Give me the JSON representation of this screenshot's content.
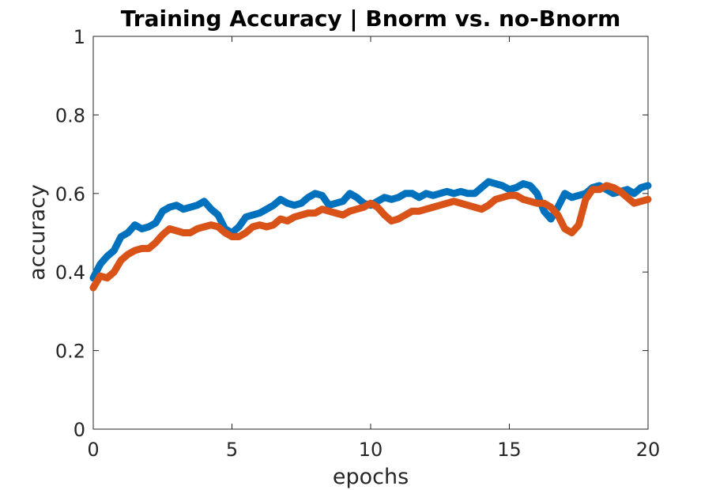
{
  "chart_data": {
    "type": "line",
    "title": "Training Accuracy | Bnorm vs. no-Bnorm",
    "xlabel": "epochs",
    "ylabel": "accuracy",
    "xlim": [
      0,
      20
    ],
    "ylim": [
      0,
      1
    ],
    "xticks": [
      0,
      5,
      10,
      15,
      20
    ],
    "xtick_labels": [
      "0",
      "5",
      "10",
      "15",
      "20"
    ],
    "yticks": [
      0,
      0.2,
      0.4,
      0.6,
      0.8,
      1
    ],
    "ytick_labels": [
      "0",
      "0.2",
      "0.4",
      "0.6",
      "0.8",
      "1"
    ],
    "grid": false,
    "legend": "none",
    "series": [
      {
        "color": "#0072BD",
        "x": [
          0,
          0.25,
          0.5,
          0.75,
          1,
          1.25,
          1.5,
          1.75,
          2,
          2.25,
          2.5,
          2.75,
          3,
          3.25,
          3.5,
          3.75,
          4,
          4.25,
          4.5,
          4.75,
          5,
          5.25,
          5.5,
          5.75,
          6,
          6.25,
          6.5,
          6.75,
          7,
          7.25,
          7.5,
          7.75,
          8,
          8.25,
          8.5,
          8.75,
          9,
          9.25,
          9.5,
          9.75,
          10,
          10.25,
          10.5,
          10.75,
          11,
          11.25,
          11.5,
          11.75,
          12,
          12.25,
          12.5,
          12.75,
          13,
          13.25,
          13.5,
          13.75,
          14,
          14.25,
          14.5,
          14.75,
          15,
          15.25,
          15.5,
          15.75,
          16,
          16.25,
          16.5,
          16.75,
          17,
          17.25,
          17.5,
          17.75,
          18,
          18.25,
          18.5,
          18.75,
          19,
          19.25,
          19.5,
          19.75,
          20
        ],
        "y": [
          0.385,
          0.42,
          0.44,
          0.455,
          0.49,
          0.5,
          0.52,
          0.51,
          0.515,
          0.525,
          0.555,
          0.565,
          0.57,
          0.56,
          0.565,
          0.57,
          0.58,
          0.56,
          0.545,
          0.51,
          0.5,
          0.515,
          0.54,
          0.545,
          0.55,
          0.56,
          0.57,
          0.585,
          0.575,
          0.57,
          0.575,
          0.59,
          0.6,
          0.595,
          0.57,
          0.575,
          0.58,
          0.6,
          0.59,
          0.575,
          0.57,
          0.58,
          0.59,
          0.585,
          0.59,
          0.6,
          0.6,
          0.59,
          0.6,
          0.595,
          0.6,
          0.605,
          0.6,
          0.605,
          0.6,
          0.6,
          0.615,
          0.63,
          0.625,
          0.62,
          0.61,
          0.615,
          0.625,
          0.62,
          0.6,
          0.555,
          0.535,
          0.565,
          0.6,
          0.59,
          0.595,
          0.6,
          0.615,
          0.62,
          0.61,
          0.6,
          0.605,
          0.61,
          0.6,
          0.615,
          0.62
        ]
      },
      {
        "color": "#D95319",
        "x": [
          0,
          0.25,
          0.5,
          0.75,
          1,
          1.25,
          1.5,
          1.75,
          2,
          2.25,
          2.5,
          2.75,
          3,
          3.25,
          3.5,
          3.75,
          4,
          4.25,
          4.5,
          4.75,
          5,
          5.25,
          5.5,
          5.75,
          6,
          6.25,
          6.5,
          6.75,
          7,
          7.25,
          7.5,
          7.75,
          8,
          8.25,
          8.5,
          8.75,
          9,
          9.25,
          9.5,
          9.75,
          10,
          10.25,
          10.5,
          10.75,
          11,
          11.25,
          11.5,
          11.75,
          12,
          12.25,
          12.5,
          12.75,
          13,
          13.25,
          13.5,
          13.75,
          14,
          14.25,
          14.5,
          14.75,
          15,
          15.25,
          15.5,
          15.75,
          16,
          16.25,
          16.5,
          16.75,
          17,
          17.25,
          17.5,
          17.75,
          18,
          18.25,
          18.5,
          18.75,
          19,
          19.25,
          19.5,
          19.75,
          20
        ],
        "y": [
          0.36,
          0.39,
          0.385,
          0.4,
          0.43,
          0.445,
          0.455,
          0.46,
          0.46,
          0.475,
          0.495,
          0.51,
          0.505,
          0.5,
          0.5,
          0.51,
          0.515,
          0.52,
          0.515,
          0.5,
          0.49,
          0.49,
          0.5,
          0.515,
          0.52,
          0.515,
          0.52,
          0.535,
          0.53,
          0.54,
          0.545,
          0.55,
          0.55,
          0.56,
          0.555,
          0.55,
          0.545,
          0.555,
          0.56,
          0.565,
          0.575,
          0.565,
          0.545,
          0.53,
          0.535,
          0.545,
          0.555,
          0.555,
          0.56,
          0.565,
          0.57,
          0.575,
          0.58,
          0.575,
          0.57,
          0.565,
          0.56,
          0.57,
          0.585,
          0.59,
          0.595,
          0.595,
          0.585,
          0.58,
          0.575,
          0.575,
          0.565,
          0.545,
          0.51,
          0.5,
          0.52,
          0.585,
          0.61,
          0.61,
          0.62,
          0.615,
          0.605,
          0.59,
          0.575,
          0.58,
          0.585
        ]
      }
    ]
  }
}
